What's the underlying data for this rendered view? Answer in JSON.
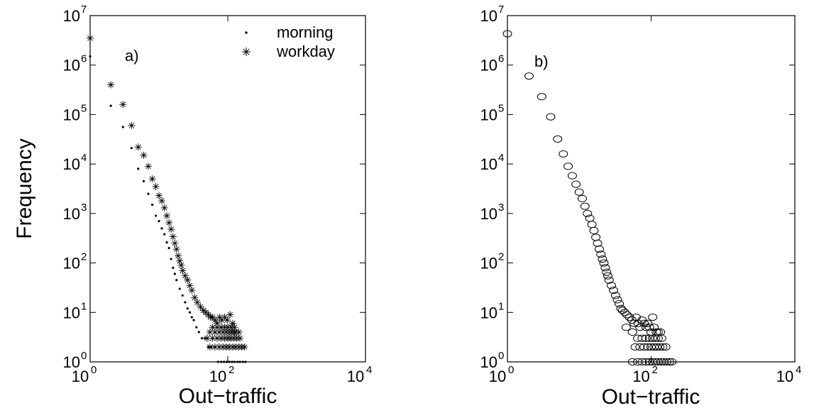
{
  "chart_data": [
    {
      "type": "scatter",
      "panel_label": "a)",
      "xlabel": "Out−traffic",
      "ylabel": "Frequency",
      "xscale": "log",
      "yscale": "log",
      "xlim": [
        1,
        10000
      ],
      "ylim": [
        1,
        10000000
      ],
      "x_ticks": [
        {
          "base": "10",
          "exp": "0"
        },
        {
          "base": "10",
          "exp": "2"
        },
        {
          "base": "10",
          "exp": "4"
        }
      ],
      "y_ticks": [
        {
          "base": "10",
          "exp": "0"
        },
        {
          "base": "10",
          "exp": "1"
        },
        {
          "base": "10",
          "exp": "2"
        },
        {
          "base": "10",
          "exp": "3"
        },
        {
          "base": "10",
          "exp": "4"
        },
        {
          "base": "10",
          "exp": "5"
        },
        {
          "base": "10",
          "exp": "6"
        },
        {
          "base": "10",
          "exp": "7"
        }
      ],
      "grid": false,
      "legend_position": "top-right",
      "series": [
        {
          "name": "morning",
          "marker": "dot",
          "color": "#000000",
          "points": [
            [
              1,
              1500000
            ],
            [
              2,
              150000
            ],
            [
              3,
              56000
            ],
            [
              4,
              21000
            ],
            [
              5,
              8000
            ],
            [
              6,
              4500
            ],
            [
              7,
              2500
            ],
            [
              8,
              1500
            ],
            [
              9,
              900
            ],
            [
              10,
              700
            ],
            [
              11,
              500
            ],
            [
              12,
              380
            ],
            [
              13,
              260
            ],
            [
              14,
              200
            ],
            [
              15,
              120
            ],
            [
              16,
              80
            ],
            [
              17,
              60
            ],
            [
              18,
              45
            ],
            [
              20,
              30
            ],
            [
              22,
              22
            ],
            [
              24,
              16
            ],
            [
              26,
              12
            ],
            [
              28,
              10
            ],
            [
              30,
              8
            ],
            [
              32,
              7
            ],
            [
              35,
              5
            ],
            [
              38,
              4
            ],
            [
              42,
              3
            ],
            [
              46,
              3
            ],
            [
              52,
              2
            ],
            [
              58,
              2
            ],
            [
              65,
              2
            ],
            [
              72,
              1
            ],
            [
              80,
              1
            ],
            [
              88,
              1
            ],
            [
              96,
              1
            ],
            [
              105,
              1
            ],
            [
              115,
              1
            ],
            [
              125,
              1
            ],
            [
              138,
              1
            ],
            [
              150,
              1
            ],
            [
              165,
              1
            ],
            [
              180,
              1
            ]
          ]
        },
        {
          "name": "workday",
          "marker": "asterisk",
          "color": "#000000",
          "points": [
            [
              1,
              3500000
            ],
            [
              2,
              400000
            ],
            [
              3,
              160000
            ],
            [
              4,
              60000
            ],
            [
              5,
              22000
            ],
            [
              6,
              15000
            ],
            [
              7,
              9000
            ],
            [
              8,
              5000
            ],
            [
              9,
              3500
            ],
            [
              10,
              2300
            ],
            [
              11,
              1800
            ],
            [
              12,
              1300
            ],
            [
              13,
              900
            ],
            [
              14,
              650
            ],
            [
              15,
              480
            ],
            [
              16,
              340
            ],
            [
              17,
              250
            ],
            [
              18,
              190
            ],
            [
              19,
              140
            ],
            [
              20,
              110
            ],
            [
              21,
              90
            ],
            [
              22,
              70
            ],
            [
              24,
              55
            ],
            [
              26,
              45
            ],
            [
              28,
              35
            ],
            [
              30,
              28
            ],
            [
              33,
              20
            ],
            [
              36,
              16
            ],
            [
              40,
              13
            ],
            [
              44,
              11
            ],
            [
              48,
              10
            ],
            [
              52,
              9
            ],
            [
              56,
              8
            ],
            [
              60,
              8
            ],
            [
              65,
              7
            ],
            [
              70,
              6
            ],
            [
              76,
              8
            ],
            [
              82,
              7
            ],
            [
              90,
              8
            ],
            [
              98,
              7
            ],
            [
              108,
              9
            ],
            [
              118,
              6
            ],
            [
              125,
              4
            ],
            [
              60,
              5
            ],
            [
              70,
              5
            ],
            [
              80,
              5
            ],
            [
              90,
              5
            ],
            [
              100,
              5
            ],
            [
              112,
              5
            ],
            [
              125,
              5
            ],
            [
              55,
              4
            ],
            [
              65,
              4
            ],
            [
              75,
              4
            ],
            [
              85,
              4
            ],
            [
              95,
              4
            ],
            [
              105,
              4
            ],
            [
              115,
              4
            ],
            [
              130,
              4
            ],
            [
              145,
              4
            ],
            [
              50,
              3
            ],
            [
              60,
              3
            ],
            [
              70,
              3
            ],
            [
              80,
              3
            ],
            [
              90,
              3
            ],
            [
              100,
              3
            ],
            [
              110,
              3
            ],
            [
              122,
              3
            ],
            [
              135,
              3
            ],
            [
              150,
              3
            ],
            [
              55,
              2
            ],
            [
              65,
              2
            ],
            [
              75,
              2
            ],
            [
              85,
              2
            ],
            [
              95,
              2
            ],
            [
              105,
              2
            ],
            [
              118,
              2
            ],
            [
              130,
              2
            ],
            [
              145,
              2
            ],
            [
              160,
              2
            ],
            [
              175,
              2
            ]
          ]
        }
      ],
      "title": ""
    },
    {
      "type": "scatter",
      "panel_label": "b)",
      "xlabel": "Out−traffic",
      "ylabel": "",
      "xscale": "log",
      "yscale": "log",
      "xlim": [
        1,
        10000
      ],
      "ylim": [
        1,
        10000000
      ],
      "x_ticks": [
        {
          "base": "10",
          "exp": "0"
        },
        {
          "base": "10",
          "exp": "2"
        },
        {
          "base": "10",
          "exp": "4"
        }
      ],
      "y_ticks": [
        {
          "base": "10",
          "exp": "0"
        },
        {
          "base": "10",
          "exp": "1"
        },
        {
          "base": "10",
          "exp": "2"
        },
        {
          "base": "10",
          "exp": "3"
        },
        {
          "base": "10",
          "exp": "4"
        },
        {
          "base": "10",
          "exp": "5"
        },
        {
          "base": "10",
          "exp": "6"
        },
        {
          "base": "10",
          "exp": "7"
        }
      ],
      "grid": false,
      "series": [
        {
          "name": "",
          "marker": "circle",
          "color": "#000000",
          "points": [
            [
              1,
              4300000
            ],
            [
              2,
              600000
            ],
            [
              3,
              230000
            ],
            [
              4,
              90000
            ],
            [
              5,
              32000
            ],
            [
              6,
              16000
            ],
            [
              7,
              9000
            ],
            [
              8,
              5800
            ],
            [
              9,
              3900
            ],
            [
              10,
              2700
            ],
            [
              11,
              2000
            ],
            [
              12,
              1400
            ],
            [
              13,
              1000
            ],
            [
              14,
              800
            ],
            [
              15,
              600
            ],
            [
              16,
              450
            ],
            [
              17,
              330
            ],
            [
              18,
              250
            ],
            [
              19,
              190
            ],
            [
              20,
              150
            ],
            [
              21,
              120
            ],
            [
              22,
              100
            ],
            [
              23,
              80
            ],
            [
              24,
              65
            ],
            [
              25,
              55
            ],
            [
              26,
              45
            ],
            [
              28,
              35
            ],
            [
              30,
              28
            ],
            [
              32,
              22
            ],
            [
              34,
              18
            ],
            [
              36,
              15
            ],
            [
              38,
              12
            ],
            [
              40,
              11
            ],
            [
              43,
              10
            ],
            [
              46,
              9
            ],
            [
              50,
              8
            ],
            [
              54,
              7
            ],
            [
              58,
              6
            ],
            [
              62,
              8
            ],
            [
              66,
              6
            ],
            [
              70,
              5
            ],
            [
              75,
              7
            ],
            [
              80,
              6
            ],
            [
              85,
              5
            ],
            [
              90,
              6
            ],
            [
              95,
              5
            ],
            [
              100,
              4
            ],
            [
              105,
              8
            ],
            [
              110,
              5
            ],
            [
              118,
              4
            ],
            [
              125,
              4
            ],
            [
              135,
              4
            ],
            [
              45,
              5
            ],
            [
              55,
              4
            ],
            [
              65,
              3
            ],
            [
              75,
              3
            ],
            [
              85,
              3
            ],
            [
              95,
              3
            ],
            [
              105,
              3
            ],
            [
              115,
              3
            ],
            [
              125,
              3
            ],
            [
              140,
              3
            ],
            [
              60,
              2
            ],
            [
              70,
              2
            ],
            [
              80,
              2
            ],
            [
              90,
              2
            ],
            [
              100,
              2
            ],
            [
              110,
              2
            ],
            [
              120,
              2
            ],
            [
              132,
              2
            ],
            [
              145,
              2
            ],
            [
              160,
              2
            ],
            [
              55,
              1
            ],
            [
              65,
              1
            ],
            [
              75,
              1
            ],
            [
              85,
              1
            ],
            [
              95,
              1
            ],
            [
              105,
              1
            ],
            [
              115,
              1
            ],
            [
              125,
              1
            ],
            [
              138,
              1
            ],
            [
              150,
              1
            ],
            [
              165,
              1
            ],
            [
              180,
              1
            ],
            [
              195,
              1
            ]
          ]
        }
      ],
      "title": ""
    }
  ]
}
